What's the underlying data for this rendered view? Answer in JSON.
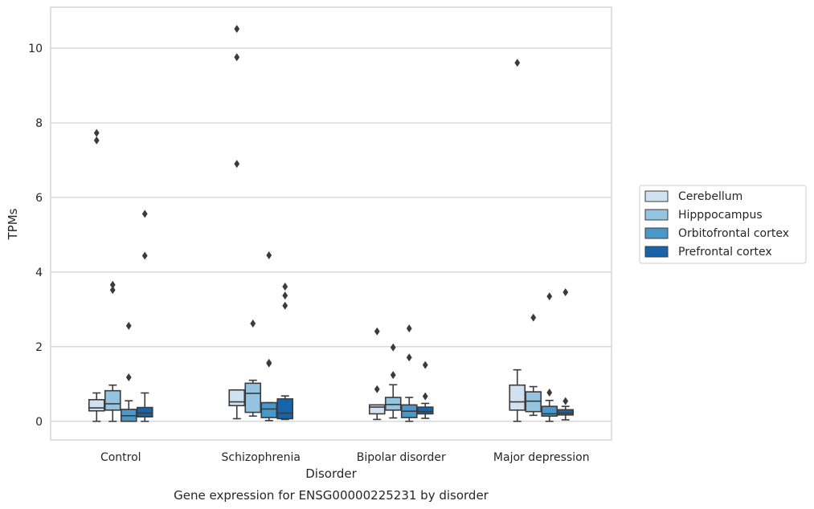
{
  "caption": "Gene expression for ENSG00000225231 by disorder",
  "chart_data": {
    "type": "boxplot",
    "xlabel": "Disorder",
    "ylabel": "TPMs",
    "ylim": [
      -0.5,
      11.1
    ],
    "yticks": [
      0,
      2,
      4,
      6,
      8,
      10
    ],
    "grid": "horizontal",
    "legend_placement": "right",
    "categories": [
      "Control",
      "Schizophrenia",
      "Bipolar disorder",
      "Major depression"
    ],
    "series": [
      {
        "name": "Cerebellum",
        "color": "#d0e1f2",
        "boxes": [
          {
            "whisker_low": 0.0,
            "q1": 0.28,
            "median": 0.36,
            "q3": 0.58,
            "whisker_high": 0.76,
            "outliers": [
              7.53,
              7.73
            ]
          },
          {
            "whisker_low": 0.07,
            "q1": 0.42,
            "median": 0.52,
            "q3": 0.84,
            "whisker_high": 0.84,
            "outliers": [
              6.9,
              9.76,
              10.52
            ]
          },
          {
            "whisker_low": 0.05,
            "q1": 0.2,
            "median": 0.38,
            "q3": 0.44,
            "whisker_high": 0.44,
            "outliers": [
              0.86,
              2.41
            ]
          },
          {
            "whisker_low": 0.0,
            "q1": 0.3,
            "median": 0.52,
            "q3": 0.97,
            "whisker_high": 1.38,
            "outliers": [
              9.61
            ]
          }
        ]
      },
      {
        "name": "Hipppocampus",
        "color": "#94c4df",
        "boxes": [
          {
            "whisker_low": 0.0,
            "q1": 0.3,
            "median": 0.47,
            "q3": 0.82,
            "whisker_high": 0.97,
            "outliers": [
              3.52,
              3.66
            ]
          },
          {
            "whisker_low": 0.14,
            "q1": 0.24,
            "median": 0.75,
            "q3": 1.02,
            "whisker_high": 1.1,
            "outliers": [
              2.62
            ]
          },
          {
            "whisker_low": 0.09,
            "q1": 0.3,
            "median": 0.45,
            "q3": 0.64,
            "whisker_high": 0.98,
            "outliers": [
              1.24,
              1.98
            ]
          },
          {
            "whisker_low": 0.16,
            "q1": 0.26,
            "median": 0.54,
            "q3": 0.79,
            "whisker_high": 0.93,
            "outliers": [
              2.78
            ]
          }
        ]
      },
      {
        "name": "Orbitofrontal cortex",
        "color": "#4a98c9",
        "boxes": [
          {
            "whisker_low": 0.0,
            "q1": 0.0,
            "median": 0.15,
            "q3": 0.32,
            "whisker_high": 0.55,
            "outliers": [
              1.18,
              2.56
            ]
          },
          {
            "whisker_low": 0.02,
            "q1": 0.1,
            "median": 0.33,
            "q3": 0.5,
            "whisker_high": 0.5,
            "outliers": [
              1.55,
              1.57,
              4.45
            ]
          },
          {
            "whisker_low": 0.0,
            "q1": 0.1,
            "median": 0.27,
            "q3": 0.44,
            "whisker_high": 0.64,
            "outliers": [
              1.71,
              2.49
            ]
          },
          {
            "whisker_low": 0.0,
            "q1": 0.14,
            "median": 0.2,
            "q3": 0.4,
            "whisker_high": 0.56,
            "outliers": [
              0.77,
              3.35
            ]
          }
        ]
      },
      {
        "name": "Prefrontal cortex",
        "color": "#1764ab",
        "boxes": [
          {
            "whisker_low": 0.0,
            "q1": 0.12,
            "median": 0.22,
            "q3": 0.37,
            "whisker_high": 0.76,
            "outliers": [
              4.44,
              5.56
            ]
          },
          {
            "whisker_low": 0.05,
            "q1": 0.07,
            "median": 0.22,
            "q3": 0.6,
            "whisker_high": 0.68,
            "outliers": [
              3.1,
              3.37,
              3.61
            ]
          },
          {
            "whisker_low": 0.08,
            "q1": 0.2,
            "median": 0.26,
            "q3": 0.38,
            "whisker_high": 0.48,
            "outliers": [
              0.67,
              1.51
            ]
          },
          {
            "whisker_low": 0.04,
            "q1": 0.17,
            "median": 0.22,
            "q3": 0.31,
            "whisker_high": 0.4,
            "outliers": [
              0.54,
              3.46
            ]
          }
        ]
      }
    ]
  }
}
